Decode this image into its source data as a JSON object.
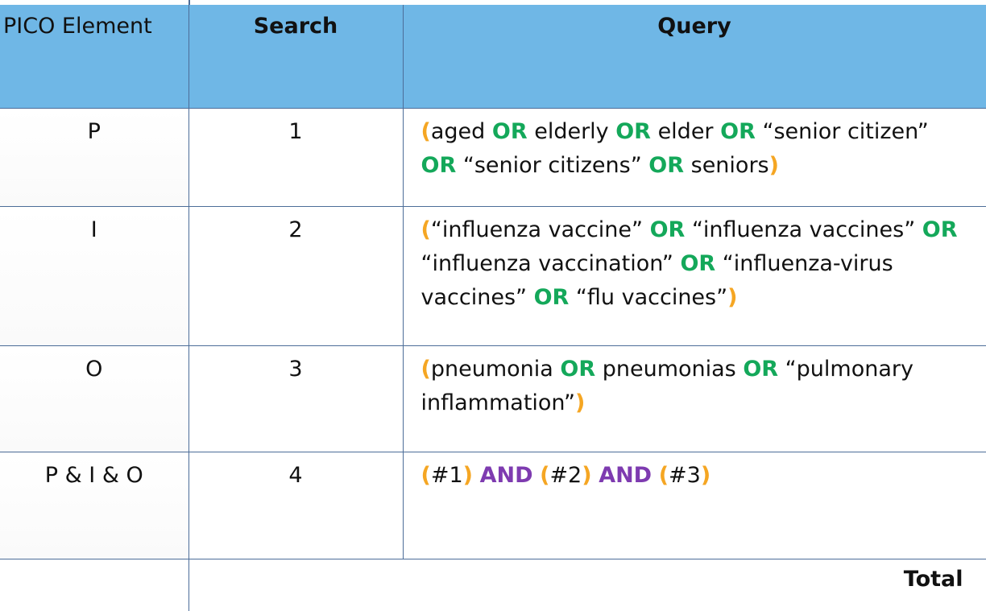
{
  "header": {
    "pico": "PICO Element",
    "search": "Search",
    "query": "Query"
  },
  "rows": [
    {
      "pico": "P",
      "search": "1",
      "query": [
        {
          "t": "(",
          "k": "paren"
        },
        {
          "t": "aged ",
          "k": "text"
        },
        {
          "t": "OR",
          "k": "or"
        },
        {
          "t": " elderly ",
          "k": "text"
        },
        {
          "t": "OR",
          "k": "or"
        },
        {
          "t": " elder ",
          "k": "text"
        },
        {
          "t": "OR",
          "k": "or"
        },
        {
          "t": " “senior citizen” ",
          "k": "text"
        },
        {
          "t": "OR",
          "k": "or"
        },
        {
          "t": " “senior citizens” ",
          "k": "text"
        },
        {
          "t": "OR",
          "k": "or"
        },
        {
          "t": " seniors",
          "k": "text"
        },
        {
          "t": ")",
          "k": "paren"
        }
      ]
    },
    {
      "pico": "I",
      "search": "2",
      "query": [
        {
          "t": "(",
          "k": "paren"
        },
        {
          "t": "“influenza vaccine” ",
          "k": "text"
        },
        {
          "t": "OR",
          "k": "or"
        },
        {
          "t": " “influenza vaccines” ",
          "k": "text"
        },
        {
          "t": "OR",
          "k": "or"
        },
        {
          "t": " “influenza vaccination” ",
          "k": "text"
        },
        {
          "t": "OR",
          "k": "or"
        },
        {
          "t": " “influenza-virus vaccines” ",
          "k": "text"
        },
        {
          "t": "OR",
          "k": "or"
        },
        {
          "t": " “flu vaccines”",
          "k": "text"
        },
        {
          "t": ")",
          "k": "paren"
        }
      ]
    },
    {
      "pico": "O",
      "search": "3",
      "query": [
        {
          "t": "(",
          "k": "paren"
        },
        {
          "t": "pneumonia ",
          "k": "text"
        },
        {
          "t": "OR",
          "k": "or"
        },
        {
          "t": " pneumonias ",
          "k": "text"
        },
        {
          "t": "OR",
          "k": "or"
        },
        {
          "t": " “pulmonary inflammation”",
          "k": "text"
        },
        {
          "t": ")",
          "k": "paren"
        }
      ]
    },
    {
      "pico": "P & I & O",
      "search": "4",
      "query": [
        {
          "t": "(",
          "k": "paren"
        },
        {
          "t": "#1",
          "k": "text"
        },
        {
          "t": ")",
          "k": "paren"
        },
        {
          "t": " ",
          "k": "text"
        },
        {
          "t": "AND",
          "k": "and"
        },
        {
          "t": " ",
          "k": "text"
        },
        {
          "t": "(",
          "k": "paren"
        },
        {
          "t": "#2",
          "k": "text"
        },
        {
          "t": ")",
          "k": "paren"
        },
        {
          "t": " ",
          "k": "text"
        },
        {
          "t": "AND",
          "k": "and"
        },
        {
          "t": " ",
          "k": "text"
        },
        {
          "t": "(",
          "k": "paren"
        },
        {
          "t": "#3",
          "k": "text"
        },
        {
          "t": ")",
          "k": "paren"
        }
      ]
    }
  ],
  "footer": {
    "total": "Total"
  },
  "colors": {
    "header_bg": "#6fb7e6",
    "grid": "#4c6d99",
    "or_operator": "#14a85a",
    "and_operator": "#7e3bb0",
    "parenthesis": "#f5a623"
  }
}
